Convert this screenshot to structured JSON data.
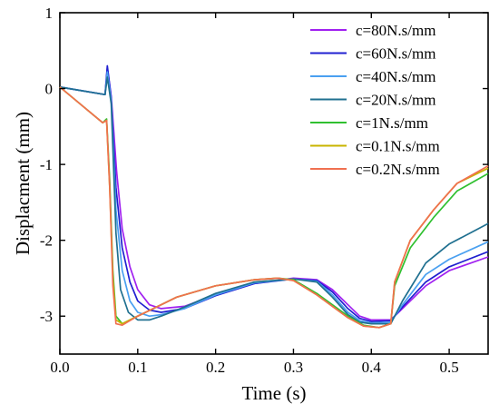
{
  "chart_data": {
    "type": "line",
    "xlabel": "Time  (s)",
    "ylabel": "Displacment  (mm)",
    "xlim": [
      0.0,
      0.55
    ],
    "ylim": [
      -3.5,
      1.0
    ],
    "xticks": [
      0.0,
      0.1,
      0.2,
      0.3,
      0.4,
      0.5
    ],
    "xtick_labels": [
      "0.0",
      "0.1",
      "0.2",
      "0.3",
      "0.4",
      "0.5"
    ],
    "yticks": [
      1,
      0,
      -1,
      -2,
      -3
    ],
    "ytick_labels": [
      "1",
      "0",
      "-1",
      "-2",
      "-3"
    ],
    "grid": false,
    "legend_position": "top-right",
    "series": [
      {
        "name": "c=80N.s/mm",
        "color": "#a020f0",
        "x": [
          0,
          0.058,
          0.061,
          0.066,
          0.073,
          0.08,
          0.09,
          0.1,
          0.115,
          0.13,
          0.16,
          0.2,
          0.25,
          0.3,
          0.33,
          0.35,
          0.37,
          0.385,
          0.4,
          0.425,
          0.44,
          0.47,
          0.5,
          0.55
        ],
        "y": [
          0.02,
          -0.08,
          0.27,
          -0.1,
          -1.1,
          -1.85,
          -2.35,
          -2.65,
          -2.85,
          -2.9,
          -2.87,
          -2.72,
          -2.57,
          -2.5,
          -2.52,
          -2.65,
          -2.85,
          -3.0,
          -3.05,
          -3.05,
          -2.9,
          -2.6,
          -2.4,
          -2.22
        ]
      },
      {
        "name": "c=60N.s/mm",
        "color": "#2020d0",
        "x": [
          0,
          0.058,
          0.061,
          0.066,
          0.072,
          0.08,
          0.09,
          0.1,
          0.115,
          0.13,
          0.16,
          0.2,
          0.25,
          0.3,
          0.33,
          0.35,
          0.37,
          0.385,
          0.4,
          0.425,
          0.44,
          0.47,
          0.5,
          0.55
        ],
        "y": [
          0.02,
          -0.08,
          0.3,
          -0.12,
          -1.3,
          -2.1,
          -2.55,
          -2.8,
          -2.92,
          -2.95,
          -2.9,
          -2.73,
          -2.57,
          -2.51,
          -2.53,
          -2.68,
          -2.9,
          -3.03,
          -3.07,
          -3.06,
          -2.88,
          -2.55,
          -2.35,
          -2.15
        ]
      },
      {
        "name": "c=40N.s/mm",
        "color": "#4aa0f0",
        "x": [
          0,
          0.058,
          0.061,
          0.066,
          0.072,
          0.08,
          0.09,
          0.1,
          0.115,
          0.13,
          0.16,
          0.2,
          0.25,
          0.3,
          0.33,
          0.35,
          0.37,
          0.385,
          0.4,
          0.425,
          0.44,
          0.47,
          0.5,
          0.55
        ],
        "y": [
          0.02,
          -0.08,
          0.22,
          -0.15,
          -1.6,
          -2.4,
          -2.8,
          -2.95,
          -3.0,
          -2.98,
          -2.9,
          -2.72,
          -2.56,
          -2.51,
          -2.54,
          -2.72,
          -2.95,
          -3.06,
          -3.09,
          -3.08,
          -2.85,
          -2.45,
          -2.25,
          -2.02
        ]
      },
      {
        "name": "c=20N.s/mm",
        "color": "#207090",
        "x": [
          0,
          0.058,
          0.061,
          0.066,
          0.072,
          0.078,
          0.088,
          0.1,
          0.115,
          0.13,
          0.16,
          0.2,
          0.25,
          0.3,
          0.33,
          0.35,
          0.37,
          0.385,
          0.4,
          0.425,
          0.44,
          0.47,
          0.5,
          0.55
        ],
        "y": [
          0.02,
          -0.08,
          0.15,
          -0.2,
          -1.9,
          -2.65,
          -2.95,
          -3.05,
          -3.05,
          -3.0,
          -2.88,
          -2.7,
          -2.55,
          -2.51,
          -2.55,
          -2.75,
          -2.98,
          -3.08,
          -3.1,
          -3.1,
          -2.8,
          -2.3,
          -2.05,
          -1.78
        ]
      },
      {
        "name": "c=1N.s/mm",
        "color": "#30c030",
        "x": [
          0,
          0.055,
          0.06,
          0.064,
          0.068,
          0.072,
          0.08,
          0.09,
          0.1,
          0.12,
          0.15,
          0.2,
          0.25,
          0.28,
          0.3,
          0.33,
          0.35,
          0.37,
          0.39,
          0.41,
          0.425,
          0.43,
          0.45,
          0.48,
          0.51,
          0.55
        ],
        "y": [
          0.02,
          -0.45,
          -0.4,
          -1.2,
          -2.4,
          -3.0,
          -3.1,
          -3.05,
          -3.0,
          -2.9,
          -2.75,
          -2.6,
          -2.52,
          -2.5,
          -2.52,
          -2.7,
          -2.85,
          -3.0,
          -3.12,
          -3.15,
          -3.1,
          -2.6,
          -2.1,
          -1.7,
          -1.35,
          -1.12
        ]
      },
      {
        "name": "c=0.1N.s/mm",
        "color": "#c8b400",
        "x": [
          0,
          0.055,
          0.06,
          0.064,
          0.068,
          0.072,
          0.08,
          0.09,
          0.1,
          0.12,
          0.15,
          0.2,
          0.25,
          0.28,
          0.3,
          0.33,
          0.35,
          0.37,
          0.39,
          0.41,
          0.425,
          0.43,
          0.45,
          0.48,
          0.51,
          0.55
        ],
        "y": [
          0.02,
          -0.45,
          -0.42,
          -1.3,
          -2.5,
          -3.05,
          -3.1,
          -3.05,
          -3.0,
          -2.9,
          -2.75,
          -2.6,
          -2.52,
          -2.5,
          -2.53,
          -2.72,
          -2.87,
          -3.02,
          -3.13,
          -3.15,
          -3.1,
          -2.55,
          -2.0,
          -1.6,
          -1.25,
          -1.05
        ]
      },
      {
        "name": "c=0.2N.s/mm",
        "color": "#f07050",
        "x": [
          0,
          0.055,
          0.06,
          0.064,
          0.068,
          0.072,
          0.08,
          0.09,
          0.1,
          0.12,
          0.15,
          0.2,
          0.25,
          0.28,
          0.3,
          0.33,
          0.35,
          0.37,
          0.39,
          0.41,
          0.425,
          0.43,
          0.45,
          0.48,
          0.51,
          0.55
        ],
        "y": [
          0.02,
          -0.45,
          -0.42,
          -1.3,
          -2.6,
          -3.1,
          -3.12,
          -3.06,
          -3.0,
          -2.9,
          -2.75,
          -2.6,
          -2.52,
          -2.5,
          -2.53,
          -2.72,
          -2.87,
          -3.02,
          -3.13,
          -3.15,
          -3.1,
          -2.55,
          -2.0,
          -1.6,
          -1.25,
          -1.02
        ]
      }
    ]
  }
}
